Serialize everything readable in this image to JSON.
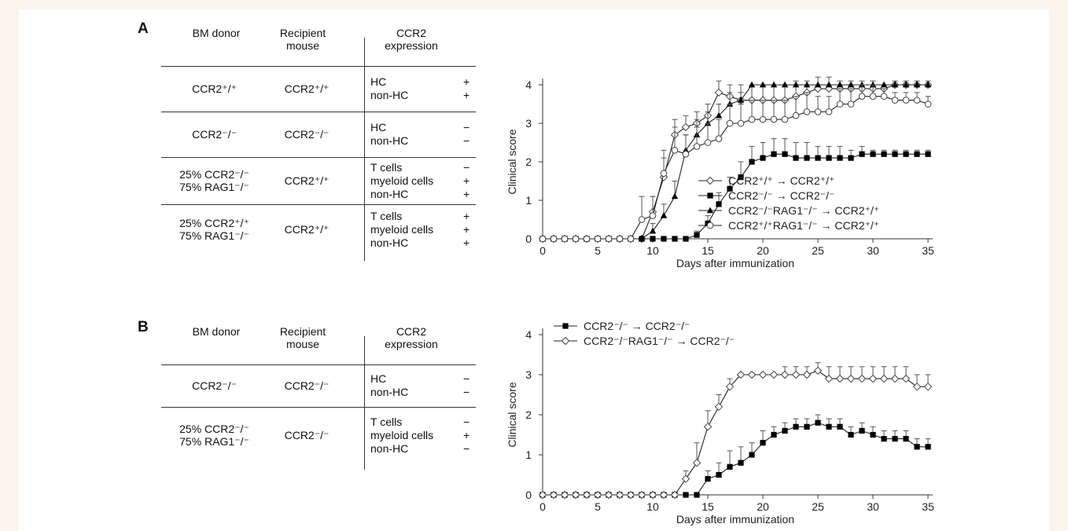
{
  "panelA": {
    "label": "A",
    "headers": {
      "donor": "BM donor",
      "recipient": [
        "Recipient",
        "mouse"
      ],
      "expression": [
        "CCR2",
        "expression"
      ]
    },
    "rows": [
      {
        "donor": [
          "CCR2⁺/⁺"
        ],
        "recipient": "CCR2⁺/⁺",
        "expr": [
          [
            "HC",
            "+"
          ],
          [
            "non-HC",
            "+"
          ]
        ]
      },
      {
        "donor": [
          "CCR2⁻/⁻"
        ],
        "recipient": "CCR2⁻/⁻",
        "expr": [
          [
            "HC",
            "−"
          ],
          [
            "non-HC",
            "−"
          ]
        ]
      },
      {
        "donor": [
          "25% CCR2⁻/⁻",
          "75% RAG1⁻/⁻"
        ],
        "recipient": "CCR2⁺/⁺",
        "expr": [
          [
            "T cells",
            "−"
          ],
          [
            "myeloid cells",
            "+"
          ],
          [
            "non-HC",
            "+"
          ]
        ]
      },
      {
        "donor": [
          "25% CCR2⁺/⁺",
          "75% RAG1⁻/⁻"
        ],
        "recipient": "CCR2⁺/⁺",
        "expr": [
          [
            "T cells",
            "+"
          ],
          [
            "myeloid cells",
            "+"
          ],
          [
            "non-HC",
            "+"
          ]
        ]
      }
    ]
  },
  "panelB": {
    "label": "B",
    "headers": {
      "donor": "BM donor",
      "recipient": [
        "Recipient",
        "mouse"
      ],
      "expression": [
        "CCR2",
        "expression"
      ]
    },
    "rows": [
      {
        "donor": [
          "CCR2⁻/⁻"
        ],
        "recipient": "CCR2⁻/⁻",
        "expr": [
          [
            "HC",
            "−"
          ],
          [
            "non-HC",
            "−"
          ]
        ]
      },
      {
        "donor": [
          "25% CCR2⁻/⁻",
          "75% RAG1⁻/⁻"
        ],
        "recipient": "CCR2⁻/⁻",
        "expr": [
          [
            "T cells",
            "−"
          ],
          [
            "myeloid cells",
            "+"
          ],
          [
            "non-HC",
            "−"
          ]
        ]
      }
    ]
  },
  "chart_data": [
    {
      "type": "line",
      "title": "",
      "xlabel": "Days after immunization",
      "ylabel": "Clinical score",
      "xlim": [
        0,
        35
      ],
      "ylim": [
        0,
        4
      ],
      "xticks": [
        0,
        5,
        10,
        15,
        20,
        25,
        30,
        35
      ],
      "yticks": [
        0,
        1,
        2,
        3,
        4
      ],
      "legend_position": "bottom-right",
      "x": [
        0,
        1,
        2,
        3,
        4,
        5,
        6,
        7,
        8,
        9,
        10,
        11,
        12,
        13,
        14,
        15,
        16,
        17,
        18,
        19,
        20,
        21,
        22,
        23,
        24,
        25,
        26,
        27,
        28,
        29,
        30,
        31,
        32,
        33,
        34,
        35
      ],
      "series": [
        {
          "name": "CCR2⁺/⁺ → CCR2⁺/⁺",
          "marker": "diamond-open",
          "values": [
            0,
            0,
            0,
            0,
            0,
            0,
            0,
            0,
            0,
            0,
            0.7,
            1.6,
            2.7,
            2.9,
            3.0,
            3.2,
            3.8,
            3.7,
            3.6,
            3.6,
            3.6,
            3.6,
            3.6,
            3.7,
            3.8,
            3.9,
            3.9,
            3.9,
            3.9,
            3.9,
            3.9,
            3.9,
            4.0,
            4.0,
            4.0,
            4.0
          ],
          "errors": [
            0,
            0,
            0,
            0,
            0,
            0,
            0,
            0,
            0,
            0,
            0.4,
            0.5,
            0.4,
            0.3,
            0.3,
            0.3,
            0.3,
            0.3,
            0.4,
            0.4,
            0.4,
            0.4,
            0.4,
            0.4,
            0.3,
            0.3,
            0.3,
            0.2,
            0.2,
            0.2,
            0.2,
            0.1,
            0.1,
            0.1,
            0.1,
            0.1
          ]
        },
        {
          "name": "CCR2⁻/⁻ → CCR2⁻/⁻",
          "marker": "square-filled",
          "values": [
            0,
            0,
            0,
            0,
            0,
            0,
            0,
            0,
            0,
            0,
            0,
            0,
            0,
            0,
            0.1,
            0.4,
            0.9,
            1.3,
            1.6,
            2.0,
            2.1,
            2.2,
            2.2,
            2.1,
            2.1,
            2.1,
            2.1,
            2.1,
            2.1,
            2.2,
            2.2,
            2.2,
            2.2,
            2.2,
            2.2,
            2.2
          ],
          "errors": [
            0,
            0,
            0,
            0,
            0,
            0,
            0,
            0,
            0,
            0,
            0,
            0,
            0,
            0,
            0.1,
            0.2,
            0.3,
            0.3,
            0.4,
            0.4,
            0.4,
            0.4,
            0.4,
            0.4,
            0.4,
            0.3,
            0.3,
            0.3,
            0.2,
            0.2,
            0.1,
            0.1,
            0.1,
            0.1,
            0.1,
            0.1
          ]
        },
        {
          "name": "CCR2⁻/⁻RAG1⁻/⁻ → CCR2⁺/⁺",
          "marker": "triangle-filled",
          "values": [
            0,
            0,
            0,
            0,
            0,
            0,
            0,
            0,
            0,
            0,
            0.2,
            0.6,
            1.1,
            2.3,
            2.7,
            3.0,
            3.2,
            3.5,
            3.6,
            4.0,
            4.0,
            4.0,
            4.0,
            4.0,
            4.0,
            4.0,
            4.0,
            4.0,
            4.0,
            4.0,
            4.0,
            4.0,
            4.0,
            4.0,
            4.0,
            4.0
          ],
          "errors": [
            0,
            0,
            0,
            0,
            0,
            0,
            0,
            0,
            0,
            0,
            0.2,
            0.3,
            0.4,
            0.4,
            0.4,
            0.3,
            0.3,
            0.3,
            0.2,
            0,
            0,
            0,
            0,
            0,
            0,
            0,
            0,
            0,
            0,
            0,
            0,
            0,
            0,
            0,
            0,
            0
          ]
        },
        {
          "name": "CCR2⁺/⁺RAG1⁻/⁻ → CCR2⁺/⁺",
          "marker": "circle-open",
          "values": [
            0,
            0,
            0,
            0,
            0,
            0,
            0,
            0,
            0,
            0.5,
            0.6,
            1.7,
            2.3,
            2.2,
            2.4,
            2.5,
            2.6,
            3.0,
            3.0,
            3.1,
            3.1,
            3.1,
            3.1,
            3.2,
            3.3,
            3.3,
            3.3,
            3.5,
            3.5,
            3.7,
            3.7,
            3.7,
            3.6,
            3.6,
            3.6,
            3.5
          ],
          "errors": [
            0,
            0,
            0,
            0,
            0,
            0,
            0,
            0,
            0,
            0.6,
            0.5,
            0.6,
            0.6,
            0.5,
            0.5,
            0.5,
            0.5,
            0.5,
            0.5,
            0.5,
            0.5,
            0.5,
            0.5,
            0.5,
            0.5,
            0.4,
            0.4,
            0.4,
            0.4,
            0.3,
            0.3,
            0.2,
            0.2,
            0.2,
            0.2,
            0.2
          ]
        }
      ]
    },
    {
      "type": "line",
      "title": "",
      "xlabel": "Days after immunization",
      "ylabel": "Clinical score",
      "xlim": [
        0,
        35
      ],
      "ylim": [
        0,
        4
      ],
      "xticks": [
        0,
        5,
        10,
        15,
        20,
        25,
        30,
        35
      ],
      "yticks": [
        0,
        1,
        2,
        3,
        4
      ],
      "legend_position": "top-left",
      "x": [
        0,
        1,
        2,
        3,
        4,
        5,
        6,
        7,
        8,
        9,
        10,
        11,
        12,
        13,
        14,
        15,
        16,
        17,
        18,
        19,
        20,
        21,
        22,
        23,
        24,
        25,
        26,
        27,
        28,
        29,
        30,
        31,
        32,
        33,
        34,
        35
      ],
      "series": [
        {
          "name": "CCR2⁻/⁻ → CCR2⁻/⁻",
          "marker": "square-filled",
          "values": [
            0,
            0,
            0,
            0,
            0,
            0,
            0,
            0,
            0,
            0,
            0,
            0,
            0,
            0,
            0,
            0.4,
            0.5,
            0.7,
            0.8,
            1.0,
            1.3,
            1.5,
            1.6,
            1.7,
            1.7,
            1.8,
            1.7,
            1.7,
            1.5,
            1.6,
            1.5,
            1.4,
            1.4,
            1.4,
            1.2,
            1.2
          ],
          "errors": [
            0,
            0,
            0,
            0,
            0,
            0,
            0,
            0,
            0,
            0,
            0,
            0,
            0,
            0,
            0,
            0.2,
            0.3,
            0.4,
            0.4,
            0.3,
            0.3,
            0.2,
            0.2,
            0.2,
            0.2,
            0.2,
            0.2,
            0.2,
            0.2,
            0.2,
            0.2,
            0.2,
            0.2,
            0.2,
            0.2,
            0.2
          ]
        },
        {
          "name": "CCR2⁻/⁻RAG1⁻/⁻ → CCR2⁻/⁻",
          "marker": "diamond-open",
          "values": [
            0,
            0,
            0,
            0,
            0,
            0,
            0,
            0,
            0,
            0,
            0,
            0,
            0,
            0.4,
            0.8,
            1.7,
            2.2,
            2.7,
            3.0,
            3.0,
            3.0,
            3.0,
            3.0,
            3.0,
            3.0,
            3.1,
            2.9,
            2.9,
            2.9,
            2.9,
            2.9,
            2.9,
            2.9,
            2.9,
            2.7,
            2.7
          ],
          "errors": [
            0,
            0,
            0,
            0,
            0,
            0,
            0,
            0,
            0,
            0,
            0,
            0,
            0,
            0.2,
            0.5,
            0.4,
            0.3,
            0.2,
            0,
            0,
            0,
            0,
            0.2,
            0.2,
            0.2,
            0.2,
            0.3,
            0.3,
            0.3,
            0.3,
            0.3,
            0.3,
            0.3,
            0.3,
            0.3,
            0.3
          ]
        }
      ]
    }
  ]
}
